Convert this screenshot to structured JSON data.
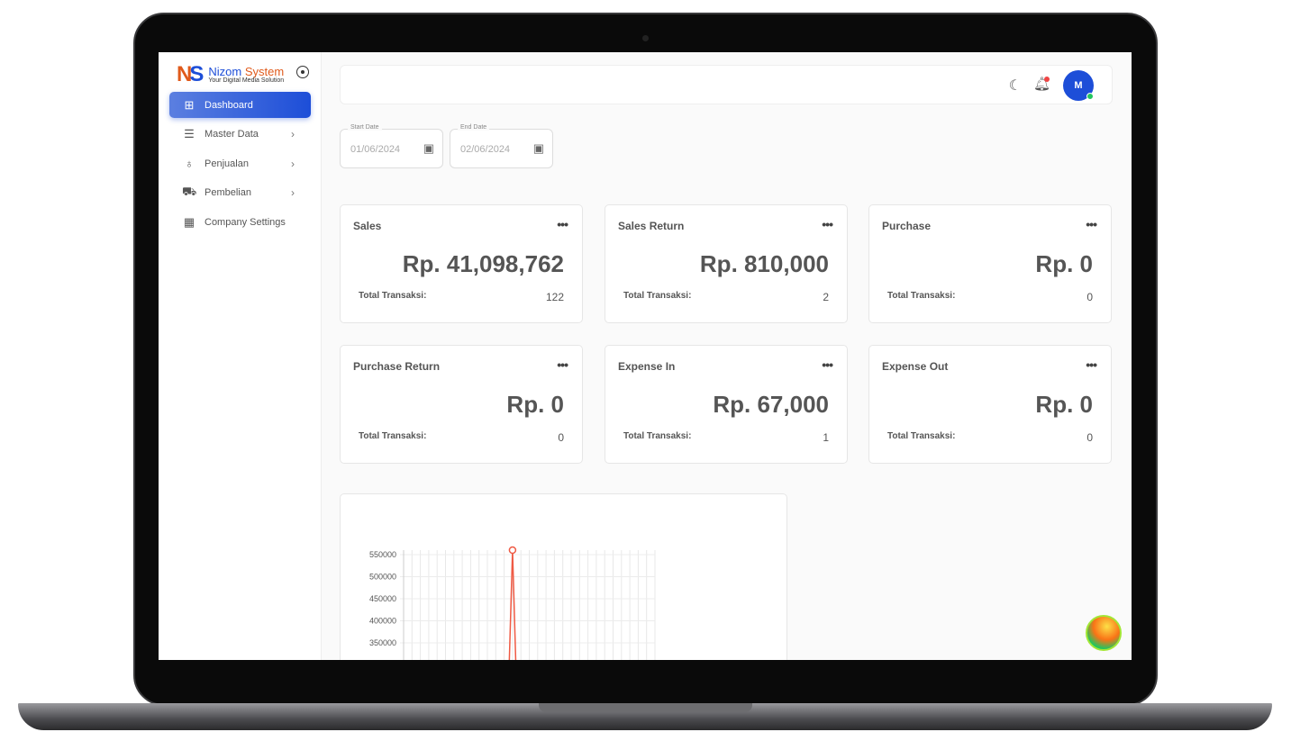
{
  "brand": {
    "name_part1": "Nizom ",
    "name_part2": "System",
    "tagline": "Your Digital Media Solution"
  },
  "sidebar": {
    "items": [
      {
        "label": "Dashboard",
        "icon": "grid-icon",
        "active": true
      },
      {
        "label": "Master Data",
        "icon": "database-icon",
        "has_children": true
      },
      {
        "label": "Penjualan",
        "icon": "bag-icon",
        "has_children": true
      },
      {
        "label": "Pembelian",
        "icon": "cart-icon",
        "has_children": true
      },
      {
        "label": "Company Settings",
        "icon": "building-icon"
      }
    ]
  },
  "header": {
    "avatar_initial": "M",
    "theme_icon": "moon-icon",
    "notification_icon": "bell-icon"
  },
  "filters": {
    "start_label": "Start Date",
    "start_value": "01/06/2024",
    "end_label": "End Date",
    "end_value": "02/06/2024"
  },
  "cards": [
    {
      "title": "Sales",
      "amount": "Rp. 41,098,762",
      "count_label": "Total Transaksi:",
      "count": "122"
    },
    {
      "title": "Sales Return",
      "amount": "Rp. 810,000",
      "count_label": "Total Transaksi:",
      "count": "2"
    },
    {
      "title": "Purchase",
      "amount": "Rp. 0",
      "count_label": "Total Transaksi:",
      "count": "0"
    },
    {
      "title": "Purchase Return",
      "amount": "Rp. 0",
      "count_label": "Total Transaksi:",
      "count": "0"
    },
    {
      "title": "Expense In",
      "amount": "Rp. 67,000",
      "count_label": "Total Transaksi:",
      "count": "1"
    },
    {
      "title": "Expense Out",
      "amount": "Rp. 0",
      "count_label": "Total Transaksi:",
      "count": "0"
    }
  ],
  "chart_data": {
    "type": "line",
    "point_count": 31,
    "visible_points": [
      {
        "index": 13,
        "value": 560000
      }
    ],
    "yticks": [
      "550000",
      "500000",
      "450000",
      "400000",
      "350000"
    ],
    "ylim_visible": [
      350000,
      560000
    ],
    "grid": true,
    "line_color": "#ef5a44"
  }
}
